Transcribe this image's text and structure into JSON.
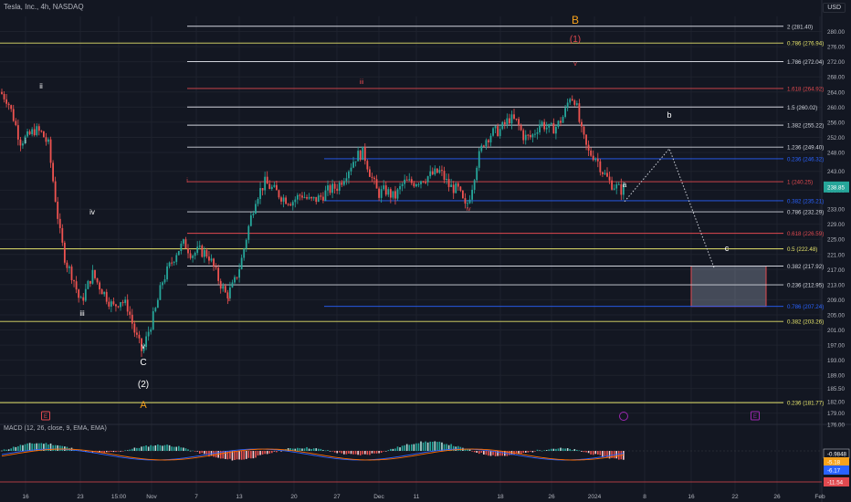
{
  "header": {
    "title": "Tesla, Inc., 4h, NASDAQ",
    "currency": "USD"
  },
  "macd": {
    "label": "MACD (12, 26, close, 9, EMA, EMA)",
    "values": [
      "-0.9848",
      "-5.18",
      "-6.17",
      "-11.54"
    ]
  },
  "colors": {
    "bg": "#131722",
    "up": "#26a69a",
    "down": "#ef5350",
    "fib_white": "#d1d4dc",
    "fib_yellow": "#e5e36b",
    "fib_red": "#e0494f",
    "fib_blue": "#2962ff",
    "orange": "#f7a21b",
    "purple": "#9c27b0"
  },
  "chart_data": {
    "type": "candlestick",
    "x_ticks": [
      "16",
      "23",
      "15:00",
      "Nov",
      "7",
      "13",
      "20",
      "27",
      "Dec",
      "11",
      "18",
      "26",
      "2024",
      "8",
      "16",
      "22",
      "26",
      "Feb"
    ],
    "y_ticks": [
      "280.00",
      "276.00",
      "272.00",
      "268.00",
      "264.00",
      "260.00",
      "256.00",
      "252.00",
      "248.00",
      "243.00",
      "238.00",
      "233.00",
      "229.00",
      "225.00",
      "221.00",
      "217.00",
      "213.00",
      "209.00",
      "205.00",
      "201.00",
      "197.00",
      "193.00",
      "189.00",
      "185.50",
      "182.00",
      "179.00",
      "176.00"
    ],
    "last_price": "238.85",
    "ylim": [
      176,
      284
    ],
    "fib_levels": [
      {
        "label": "2 (281.40)",
        "value": 281.4,
        "color": "white",
        "lvl": "2"
      },
      {
        "label": "0.786 (276.94)",
        "value": 276.94,
        "color": "yellow",
        "lvl": "0.786"
      },
      {
        "label": "1.786 (272.04)",
        "value": 272.04,
        "color": "white",
        "lvl": "1.786"
      },
      {
        "label": "1.618 (264.92)",
        "value": 264.92,
        "color": "red",
        "lvl": "1.618"
      },
      {
        "label": "1.5 (260.02)",
        "value": 260.02,
        "color": "white",
        "lvl": "1.5"
      },
      {
        "label": "1.382 (255.22)",
        "value": 255.22,
        "color": "white",
        "lvl": "1.382"
      },
      {
        "label": "1.236 (249.40)",
        "value": 249.4,
        "color": "white",
        "lvl": "1.236"
      },
      {
        "label": "0.236 (246.32)",
        "value": 246.32,
        "color": "blue",
        "lvl": "0.236"
      },
      {
        "label": "1 (240.25)",
        "value": 240.25,
        "color": "red",
        "lvl": "1"
      },
      {
        "label": "0.382 (235.21)",
        "value": 235.21,
        "color": "blue",
        "lvl": "0.382"
      },
      {
        "label": "0.786 (232.29)",
        "value": 232.29,
        "color": "white",
        "lvl": "0.786"
      },
      {
        "label": "0.618 (226.59)",
        "value": 226.59,
        "color": "red",
        "lvl": "0.618"
      },
      {
        "label": "0.5 (222.48)",
        "value": 222.48,
        "color": "yellow",
        "lvl": "0.5"
      },
      {
        "label": "0.382 (217.92)",
        "value": 217.92,
        "color": "white",
        "lvl": "0.382"
      },
      {
        "label": "0.236 (212.95)",
        "value": 212.95,
        "color": "white",
        "lvl": "0.236"
      },
      {
        "label": "0.786 (207.24)",
        "value": 207.24,
        "color": "blue",
        "lvl": "0.786"
      },
      {
        "label": "0.382 (203.26)",
        "value": 203.26,
        "color": "yellow",
        "lvl": "0.382"
      },
      {
        "label": "0.236 (181.77)",
        "value": 181.77,
        "color": "yellow",
        "lvl": "0.236"
      }
    ],
    "wave_labels": [
      "B",
      "(1)",
      "v",
      "iii",
      "ii",
      "i",
      "iv",
      "iii",
      "v",
      "C",
      "(2)",
      "A",
      "i",
      "ii",
      "iv",
      "a",
      "b",
      "c"
    ],
    "target_zone": {
      "from": 207.24,
      "to": 217.92
    },
    "events": [
      "E",
      "E"
    ]
  }
}
